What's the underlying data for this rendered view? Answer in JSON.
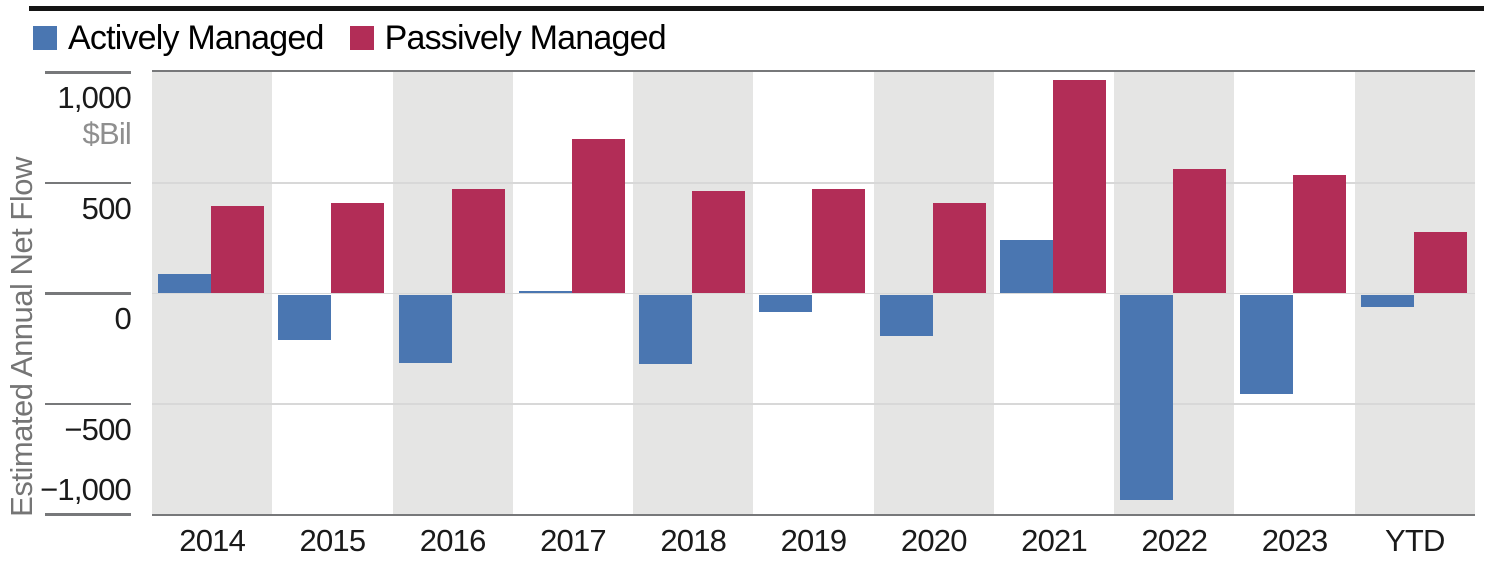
{
  "legend": {
    "items": [
      {
        "label": "Actively Managed",
        "color": "#4a76b1"
      },
      {
        "label": "Passively Managed",
        "color": "#b22d57"
      }
    ]
  },
  "y_axis": {
    "title": "Estimated Annual Net Flow",
    "unit_label": "$Bil",
    "tick_labels": [
      "1,000",
      "500",
      "0",
      "−500",
      "−1,000"
    ],
    "tick_values": [
      1000,
      500,
      0,
      -500,
      -1000
    ]
  },
  "chart_data": {
    "type": "bar",
    "title": "",
    "xlabel": "",
    "ylabel": "Estimated Annual Net Flow",
    "unit": "$Bil",
    "categories": [
      "2014",
      "2015",
      "2016",
      "2017",
      "2018",
      "2019",
      "2020",
      "2021",
      "2022",
      "2023",
      "YTD"
    ],
    "series": [
      {
        "name": "Actively Managed",
        "color": "#4a76b1",
        "values": [
          85,
          -205,
          -310,
          8,
          -315,
          -80,
          -190,
          240,
          -930,
          -450,
          -55
        ]
      },
      {
        "name": "Passively Managed",
        "color": "#b22d57",
        "values": [
          395,
          405,
          470,
          695,
          460,
          470,
          405,
          965,
          560,
          535,
          275
        ]
      }
    ],
    "ylim": [
      -1005,
      1010
    ],
    "grid_values": [
      500,
      0,
      -500
    ],
    "y_tick_values": [
      1000,
      500,
      0,
      -500,
      -1000
    ],
    "legend_position": "top-left",
    "grid": "horizontal",
    "band_fill_colors": [
      "#e5e5e4",
      "#ffffff"
    ]
  },
  "colors": {
    "active_blue": "#4a76b1",
    "passive_red": "#b22d57",
    "band_gray": "#e5e5e4",
    "gridline": "#d8d8d8",
    "axis_dark": "#77787a",
    "text_primary": "#1a1a1a",
    "text_secondary": "#757575",
    "top_rule": "#151515"
  }
}
